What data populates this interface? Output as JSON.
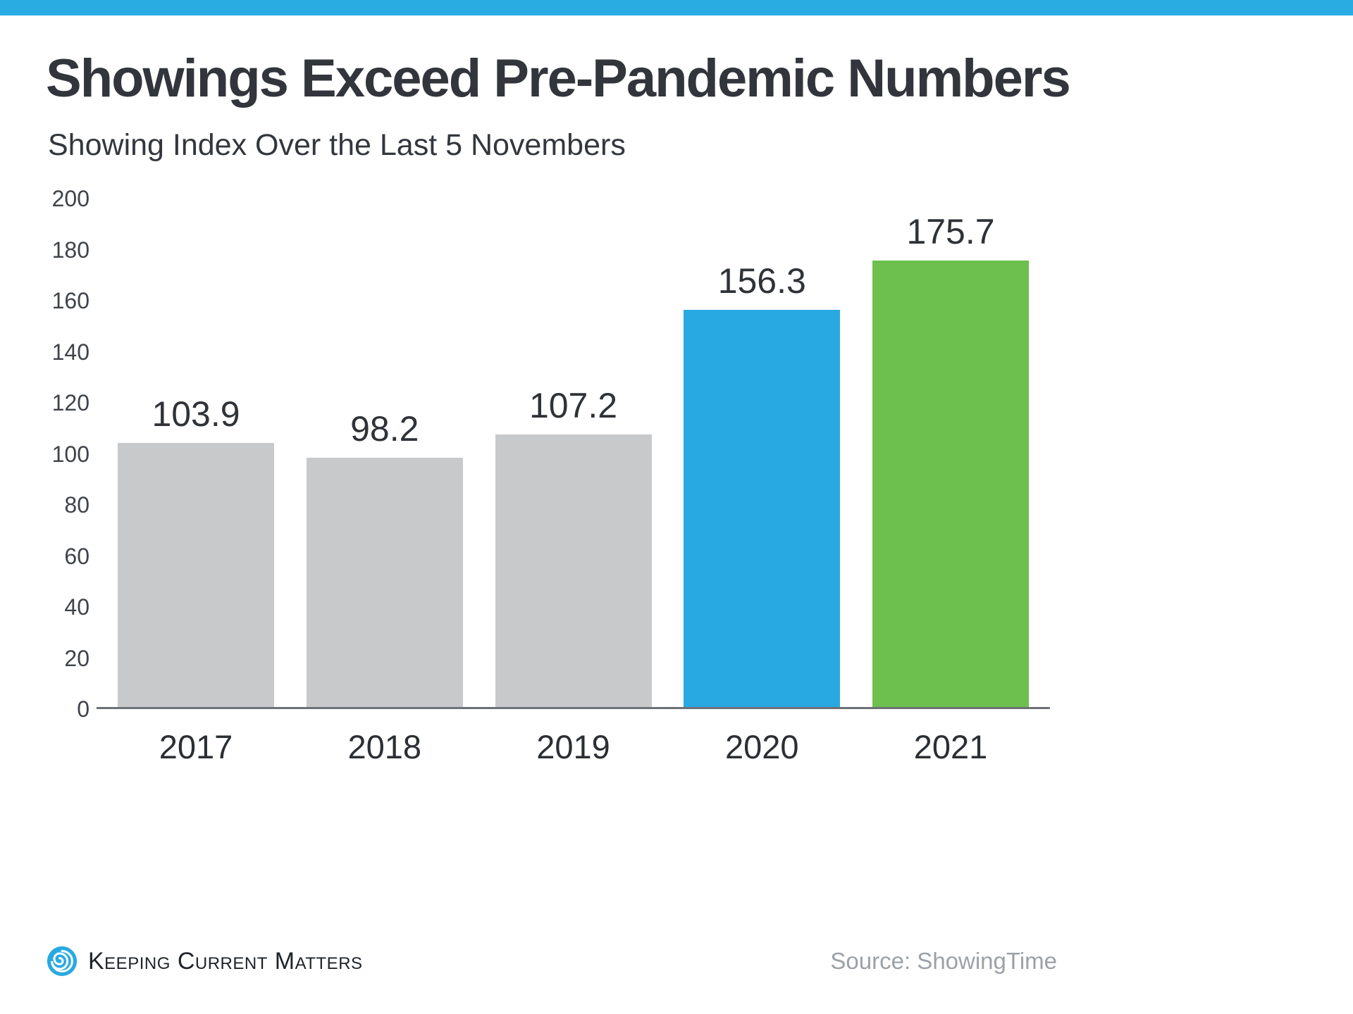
{
  "accent": {
    "top_bar_color": "#29ace2"
  },
  "chart_data": {
    "type": "bar",
    "title": "Showings Exceed Pre-Pandemic Numbers",
    "subtitle": "Showing Index Over the Last 5 Novembers",
    "categories": [
      "2017",
      "2018",
      "2019",
      "2020",
      "2021"
    ],
    "values": [
      103.9,
      98.2,
      107.2,
      156.3,
      175.7
    ],
    "value_labels": [
      "103.9",
      "98.2",
      "107.2",
      "156.3",
      "175.7"
    ],
    "bar_colors": [
      "#c8c9cb",
      "#c8c9cb",
      "#c8c9cb",
      "#29a9e1",
      "#6dbf4e"
    ],
    "ylim": [
      0,
      200
    ],
    "yticks": [
      200,
      180,
      160,
      140,
      120,
      100,
      80,
      60,
      40,
      20,
      0
    ],
    "grid": false,
    "legend": false,
    "xlabel": "",
    "ylabel": ""
  },
  "footer": {
    "brand": "Keeping Current Matters",
    "source": "Source: ShowingTime"
  }
}
